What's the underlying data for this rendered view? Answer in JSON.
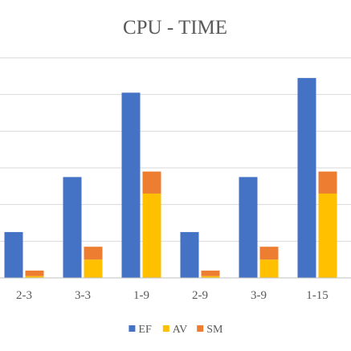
{
  "chart_data": {
    "type": "bar",
    "stacked_series": [
      "AV",
      "SM"
    ],
    "title": "CPU - TIME",
    "xlabel": "",
    "ylabel": "",
    "categories": [
      "2-3",
      "3-3",
      "1-9",
      "2-9",
      "3-9",
      "1-15"
    ],
    "series": [
      {
        "name": "EF",
        "color": "#4472C4",
        "values": [
          1.25,
          2.75,
          5.05,
          1.25,
          2.75,
          5.45
        ]
      },
      {
        "name": "AV",
        "color": "#FFC000",
        "values": [
          0.05,
          0.5,
          2.3,
          0.05,
          0.5,
          2.3
        ]
      },
      {
        "name": "SM",
        "color": "#ED7D31",
        "values": [
          0.2,
          0.85,
          2.9,
          0.2,
          0.85,
          2.9
        ]
      }
    ],
    "ylim": [
      0,
      6
    ],
    "yticks": [
      0,
      1,
      2,
      3,
      4,
      5,
      6
    ],
    "grid": true,
    "legend": "bottom",
    "colors": {
      "grid": "#D9D9D9",
      "axis": "#BFBFBF",
      "text": "#595959"
    }
  }
}
